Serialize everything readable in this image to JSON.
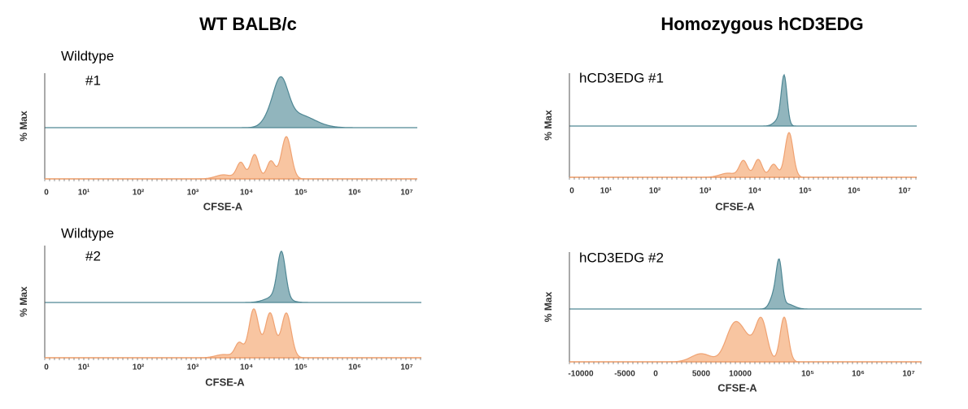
{
  "titles": [
    "WT BALB/c",
    "Homozygous hCD3EDG"
  ],
  "panels": [
    {
      "label_lines": [
        "Wildtype",
        "#1"
      ],
      "y_label": "% Max",
      "x_label": "CFSE-A",
      "x_ticks": [
        "0",
        "10¹",
        "10²",
        "10³",
        "10⁴",
        "10⁵",
        "10⁶",
        "10⁷"
      ]
    },
    {
      "label_lines": [
        "Wildtype",
        "#2"
      ],
      "y_label": "% Max",
      "x_label": "CFSE-A",
      "x_ticks": [
        "0",
        "10¹",
        "10²",
        "10³",
        "10⁴",
        "10⁵",
        "10⁶",
        "10⁷"
      ]
    },
    {
      "label_lines": [
        "hCD3EDG #1"
      ],
      "y_label": "% Max",
      "x_label": "CFSE-A",
      "x_ticks": [
        "0",
        "10¹",
        "10²",
        "10³",
        "10⁴",
        "10⁵",
        "10⁶",
        "10⁷"
      ]
    },
    {
      "label_lines": [
        "hCD3EDG #2"
      ],
      "y_label": "% Max",
      "x_label": "CFSE-A",
      "x_ticks": [
        "-10000",
        "-5000",
        "0",
        "5000",
        "10000",
        "10⁵",
        "10⁶",
        "10⁷"
      ]
    }
  ]
}
